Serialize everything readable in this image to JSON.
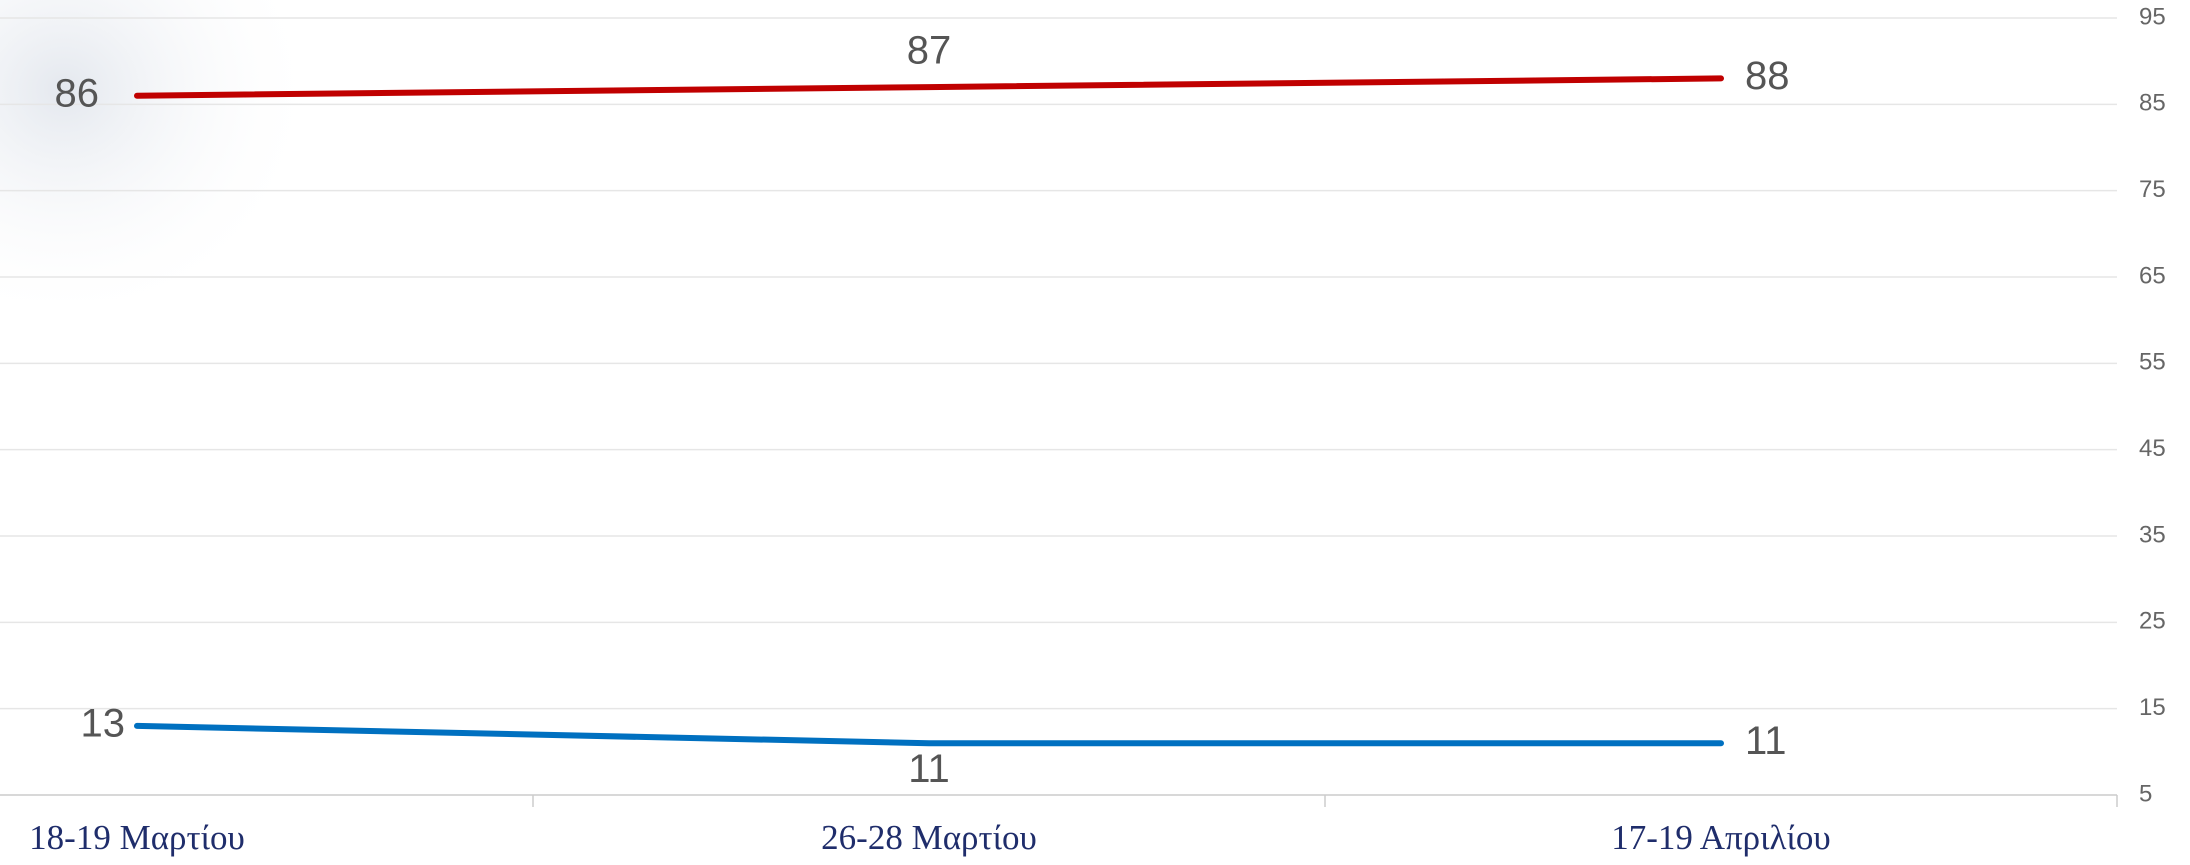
{
  "chart_data": {
    "type": "line",
    "categories": [
      "18-19 Μαρτίου",
      "26-28 Μαρτίου",
      "17-19 Απριλίου"
    ],
    "series": [
      {
        "color": "#c00000",
        "values": [
          86,
          87,
          88
        ]
      },
      {
        "color": "#0070c0",
        "values": [
          13,
          11,
          11
        ]
      }
    ],
    "ylim": [
      5,
      95
    ],
    "yticks": [
      5,
      15,
      25,
      35,
      45,
      55,
      65,
      75,
      85,
      95
    ],
    "grid": true,
    "y_axis_side": "right"
  }
}
